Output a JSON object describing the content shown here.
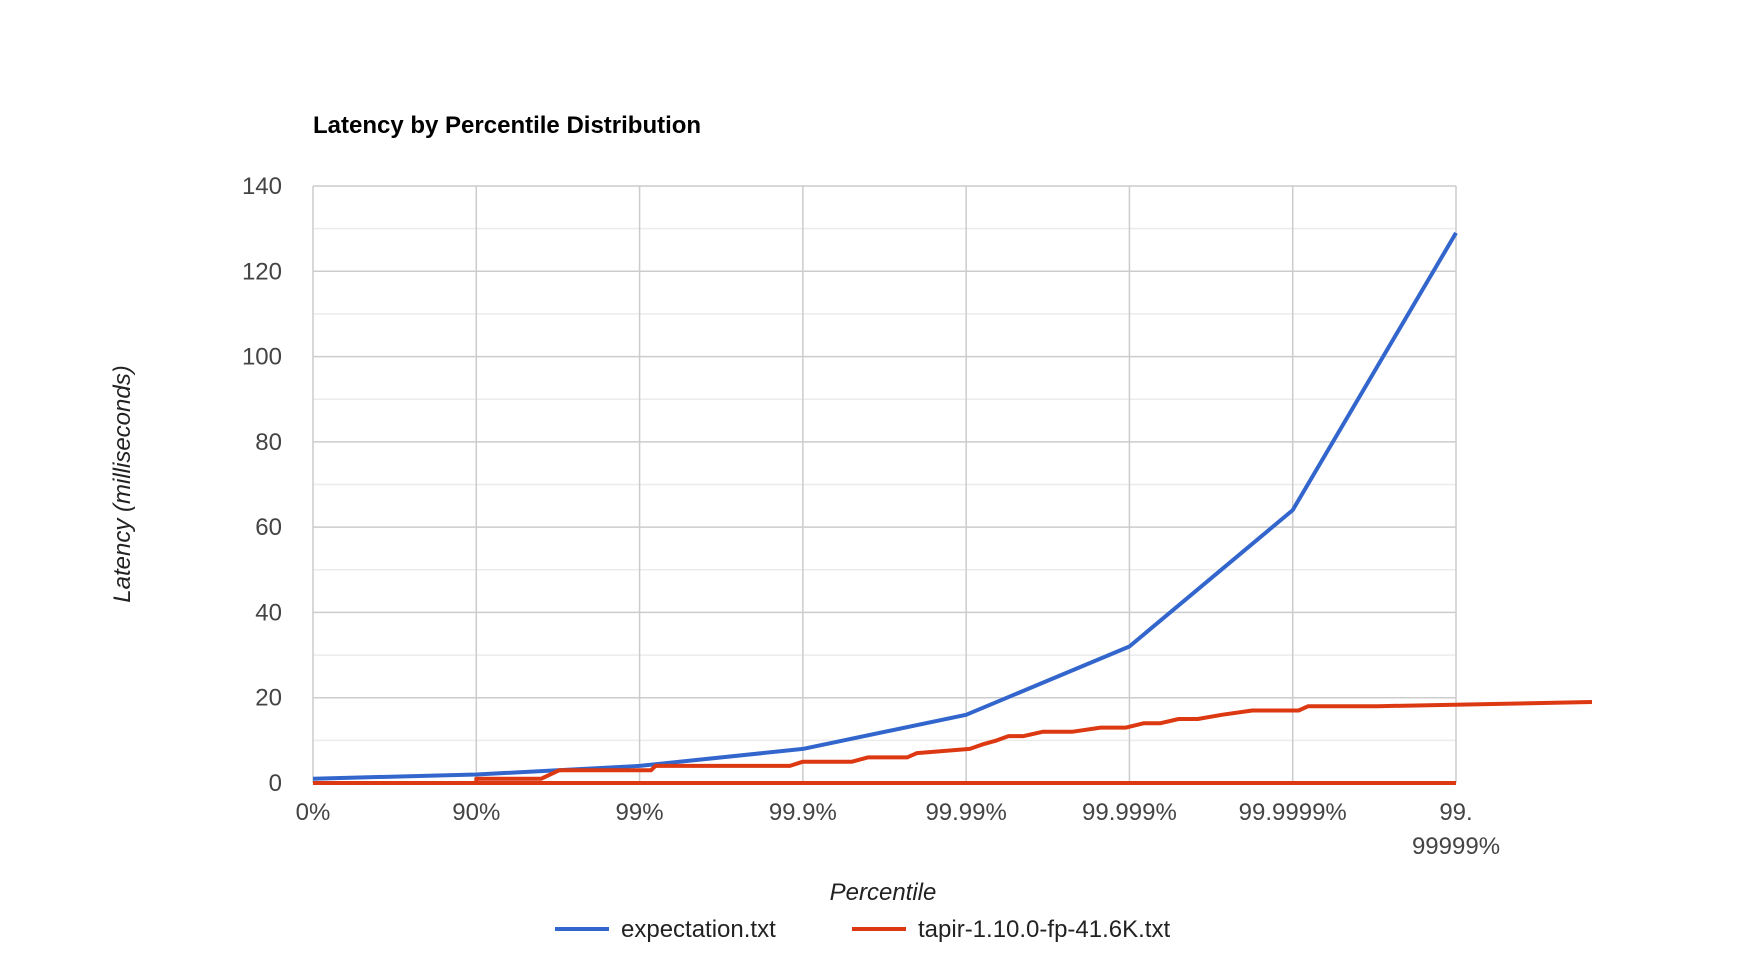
{
  "chart_data": {
    "type": "line",
    "title": "Latency by Percentile Distribution",
    "xlabel": "Percentile",
    "ylabel": "Latency (milliseconds)",
    "x_scale": "log-percentile",
    "x_ticks": [
      "0%",
      "90%",
      "99%",
      "99.9%",
      "99.99%",
      "99.999%",
      "99.9999%",
      "99.99999%"
    ],
    "x_tick_lines": [
      [
        "0%"
      ],
      [
        "90%"
      ],
      [
        "99%"
      ],
      [
        "99.9%"
      ],
      [
        "99.99%"
      ],
      [
        "99.999%"
      ],
      [
        "99.9999%"
      ],
      [
        "99.",
        "99999%"
      ]
    ],
    "ylim": [
      0,
      140
    ],
    "y_ticks": [
      0,
      20,
      40,
      60,
      80,
      100,
      120,
      140
    ],
    "grid": true,
    "legend_position": "bottom",
    "series": [
      {
        "name": "expectation.txt",
        "color": "#3366cc",
        "x": [
          "0%",
          "90%",
          "99%",
          "99.9%",
          "99.99%",
          "99.999%",
          "99.9999%",
          "99.99999%"
        ],
        "y": [
          1,
          2,
          4,
          8,
          16,
          32,
          64,
          129
        ]
      },
      {
        "name": "tapir-1.10.0-fp-41.6K.txt",
        "color": "#dc3912",
        "x": [
          "0%",
          "90%",
          "90%",
          "96%",
          "96.9%",
          "99.15%",
          "99.2%",
          "99.88%",
          "99.9%",
          "99.95%",
          "99.96%",
          "99.977%",
          "99.98%",
          "99.9905%",
          "99.9920%",
          "99.9935%",
          "99.9945%",
          "99.99555%",
          "99.9966%",
          "99.99775%",
          "99.9985%",
          "99.99895%",
          "99.99918%",
          "99.99935%",
          "99.99950%",
          "99.999618%",
          "99.999728%",
          "99.999823%",
          "99.999908%",
          "99.9999196%",
          "99.9999363%",
          "99.9999537%",
          "99.9999602%",
          "99.99997%",
          "99.99999853%"
        ],
        "y": [
          0,
          0,
          1,
          1,
          3,
          3,
          4,
          4,
          5,
          5,
          6,
          6,
          7,
          8,
          9,
          10,
          11,
          11,
          12,
          12,
          13,
          13,
          14,
          14,
          15,
          15,
          16,
          17,
          17,
          18,
          18,
          18,
          18,
          18,
          19
        ]
      }
    ]
  }
}
